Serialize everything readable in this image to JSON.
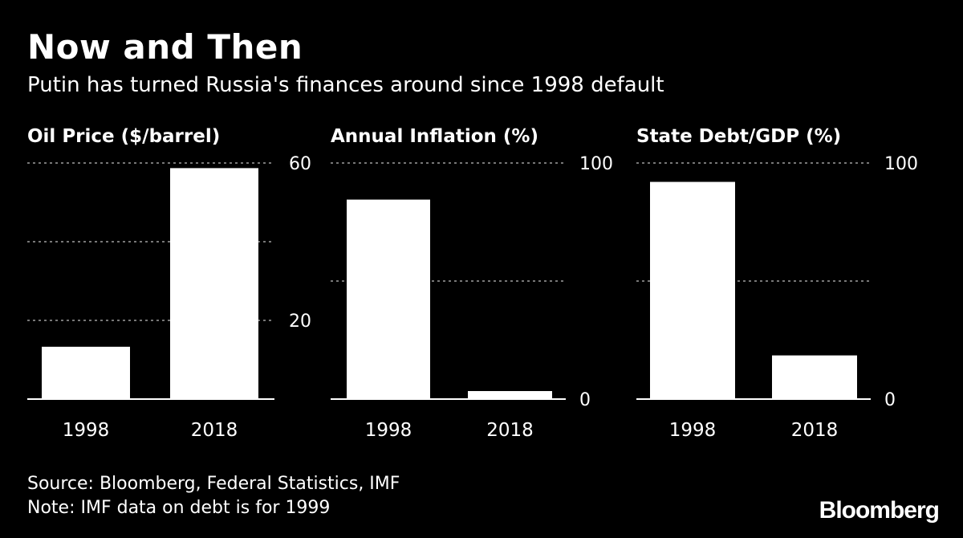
{
  "title": "Now and Then",
  "subtitle": "Putin has turned Russia's finances around since 1998 default",
  "source": "Source: Bloomberg, Federal Statistics, IMF",
  "note": "Note: IMF data on debt is for 1999",
  "logo": "Bloomberg",
  "chart_data": [
    {
      "type": "bar",
      "title": "Oil Price ($/barrel)",
      "categories": [
        "1998",
        "2018"
      ],
      "values": [
        13.3,
        58.7
      ],
      "ylim": [
        0,
        60
      ],
      "gridlines": [
        20,
        40,
        60
      ],
      "tick_labels": [
        20,
        60
      ],
      "grid": true,
      "axis_position": "right"
    },
    {
      "type": "bar",
      "title": "Annual Inflation (%)",
      "categories": [
        "1998",
        "2018"
      ],
      "values": [
        84.5,
        3.4
      ],
      "ylim": [
        0,
        100
      ],
      "gridlines": [
        50,
        100
      ],
      "tick_labels": [
        0,
        100
      ],
      "grid": true,
      "axis_position": "right"
    },
    {
      "type": "bar",
      "title": "State Debt/GDP (%)",
      "categories": [
        "1998",
        "2018"
      ],
      "values": [
        92,
        18.5
      ],
      "ylim": [
        0,
        100
      ],
      "gridlines": [
        50,
        100
      ],
      "tick_labels": [
        0,
        100
      ],
      "grid": true,
      "axis_position": "right"
    }
  ]
}
